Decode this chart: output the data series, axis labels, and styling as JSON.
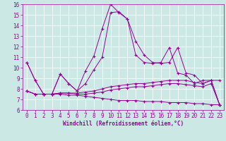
{
  "xlabel": "Windchill (Refroidissement éolien,°C)",
  "bg_color": "#cce8e4",
  "line_color": "#990099",
  "x_values": [
    0,
    1,
    2,
    3,
    4,
    5,
    6,
    7,
    8,
    9,
    10,
    11,
    12,
    13,
    14,
    15,
    16,
    17,
    18,
    19,
    20,
    21,
    22,
    23
  ],
  "series1": [
    10.5,
    8.8,
    7.5,
    7.5,
    9.4,
    8.5,
    7.8,
    9.7,
    11.1,
    13.7,
    16.0,
    15.2,
    14.6,
    12.5,
    11.2,
    10.5,
    10.4,
    10.5,
    11.9,
    9.5,
    9.3,
    8.5,
    8.8,
    8.8
  ],
  "series2": [
    10.5,
    8.8,
    7.5,
    7.5,
    9.4,
    8.5,
    7.8,
    8.5,
    9.8,
    11.0,
    15.2,
    15.3,
    14.6,
    11.2,
    10.5,
    10.4,
    10.5,
    11.9,
    9.5,
    9.3,
    8.5,
    8.8,
    8.8,
    6.5
  ],
  "series3": [
    7.8,
    7.5,
    7.5,
    7.5,
    7.6,
    7.6,
    7.6,
    7.7,
    7.8,
    8.0,
    8.2,
    8.3,
    8.4,
    8.5,
    8.5,
    8.6,
    8.7,
    8.8,
    8.8,
    8.8,
    8.6,
    8.5,
    8.8,
    6.5
  ],
  "series4": [
    7.8,
    7.5,
    7.5,
    7.5,
    7.6,
    7.6,
    7.5,
    7.5,
    7.6,
    7.7,
    7.9,
    8.0,
    8.1,
    8.2,
    8.2,
    8.3,
    8.4,
    8.5,
    8.5,
    8.4,
    8.3,
    8.2,
    8.5,
    6.5
  ],
  "series5": [
    7.8,
    7.5,
    7.5,
    7.5,
    7.5,
    7.4,
    7.4,
    7.3,
    7.2,
    7.1,
    7.0,
    6.9,
    6.9,
    6.9,
    6.8,
    6.8,
    6.8,
    6.7,
    6.7,
    6.7,
    6.6,
    6.6,
    6.5,
    6.5
  ],
  "ylim": [
    6,
    16
  ],
  "xlim": [
    -0.5,
    23.5
  ],
  "yticks": [
    6,
    7,
    8,
    9,
    10,
    11,
    12,
    13,
    14,
    15,
    16
  ],
  "xticks": [
    0,
    1,
    2,
    3,
    4,
    5,
    6,
    7,
    8,
    9,
    10,
    11,
    12,
    13,
    14,
    15,
    16,
    17,
    18,
    19,
    20,
    21,
    22,
    23
  ],
  "tick_fontsize": 5.5,
  "xlabel_fontsize": 5.5
}
